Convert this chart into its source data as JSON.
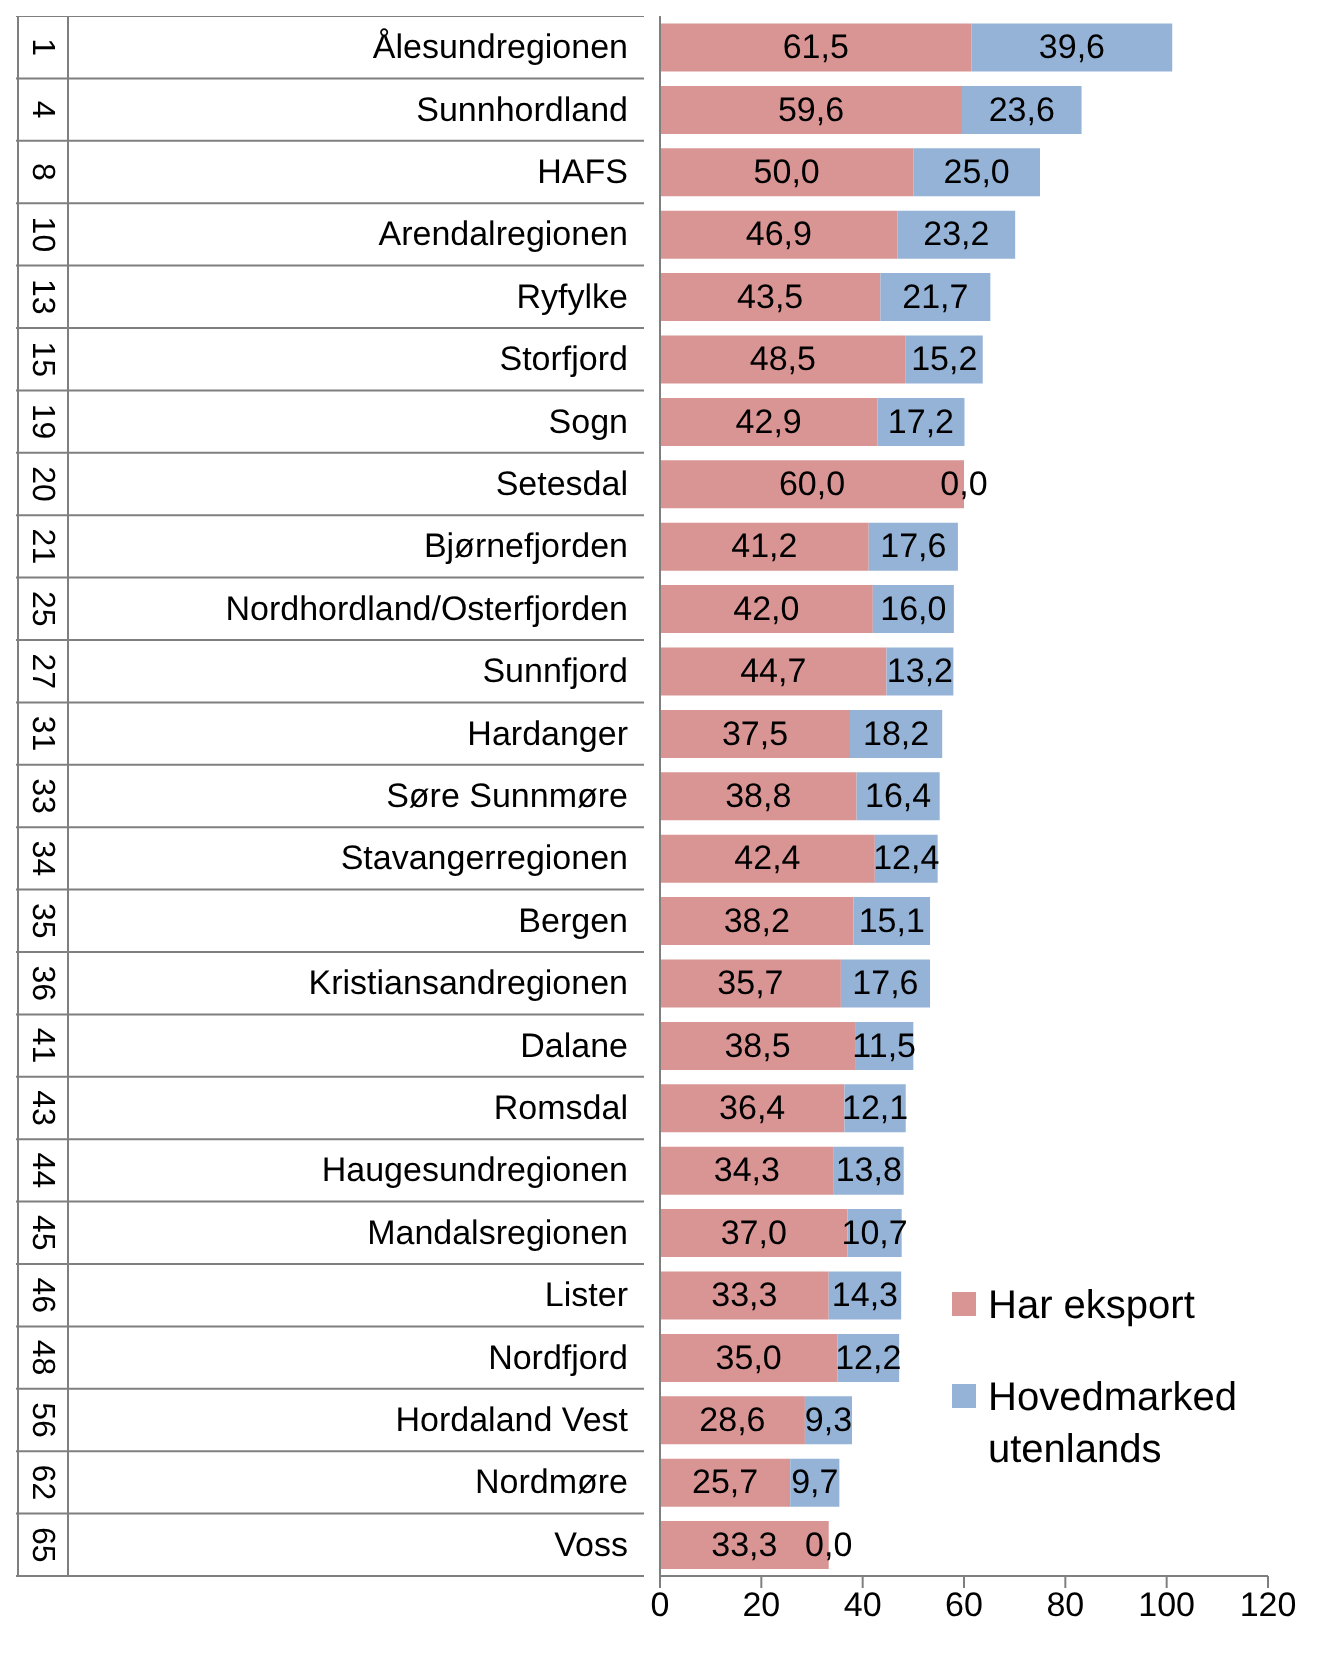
{
  "chart_data": {
    "type": "bar",
    "orientation": "horizontal",
    "stacked": true,
    "categories": [
      "Ålesundregionen",
      "Sunnhordland",
      "HAFS",
      "Arendalregionen",
      "Ryfylke",
      "Storfjord",
      "Sogn",
      "Setesdal",
      "Bjørnefjorden",
      "Nordhordland/Osterfjorden",
      "Sunnfjord",
      "Hardanger",
      "Søre Sunnmøre",
      "Stavangerregionen",
      "Bergen",
      "Kristiansandregionen",
      "Dalane",
      "Romsdal",
      "Haugesundregionen",
      "Mandalsregionen",
      "Lister",
      "Nordfjord",
      "Hordaland Vest",
      "Nordmøre",
      "Voss"
    ],
    "series": [
      {
        "name": "Har eksport",
        "color": "#d99594",
        "values": [
          61.5,
          59.6,
          50.0,
          46.9,
          43.5,
          48.5,
          42.9,
          60.0,
          41.2,
          42.0,
          44.7,
          37.5,
          38.8,
          42.4,
          38.2,
          35.7,
          38.5,
          36.4,
          34.3,
          37.0,
          33.3,
          35.0,
          28.6,
          25.7,
          33.3
        ],
        "value_labels": [
          "61,5",
          "59,6",
          "50,0",
          "46,9",
          "43,5",
          "48,5",
          "42,9",
          "60,0",
          "41,2",
          "42,0",
          "44,7",
          "37,5",
          "38,8",
          "42,4",
          "38,2",
          "35,7",
          "38,5",
          "36,4",
          "34,3",
          "37,0",
          "33,3",
          "35,0",
          "28,6",
          "25,7",
          "33,3"
        ]
      },
      {
        "name": "Hovedmarked utenlands",
        "color": "#95b3d7",
        "values": [
          39.6,
          23.6,
          25.0,
          23.2,
          21.7,
          15.2,
          17.2,
          0.0,
          17.6,
          16.0,
          13.2,
          18.2,
          16.4,
          12.4,
          15.1,
          17.6,
          11.5,
          12.1,
          13.8,
          10.7,
          14.3,
          12.2,
          9.3,
          9.7,
          0.0
        ],
        "value_labels": [
          "39,6",
          "23,6",
          "25,0",
          "23,2",
          "21,7",
          "15,2",
          "17,2",
          "0,0",
          "17,6",
          "16,0",
          "13,2",
          "18,2",
          "16,4",
          "12,4",
          "15,1",
          "17,6",
          "11,5",
          "12,1",
          "13,8",
          "10,7",
          "14,3",
          "12,2",
          "9,3",
          "9,7",
          "0,0"
        ]
      }
    ],
    "xlim": [
      0,
      120
    ],
    "xticks": [
      0,
      20,
      40,
      60,
      80,
      100,
      120
    ],
    "grid": false,
    "legend": "bottom right",
    "annotations": [
      "1",
      "4",
      "8",
      "10",
      "13",
      "15",
      "19",
      "20",
      "21",
      "25",
      "27",
      "31",
      "33",
      "34",
      "35",
      "36",
      "41",
      "43",
      "44",
      "45",
      "46",
      "48",
      "56",
      "62",
      "65"
    ]
  }
}
